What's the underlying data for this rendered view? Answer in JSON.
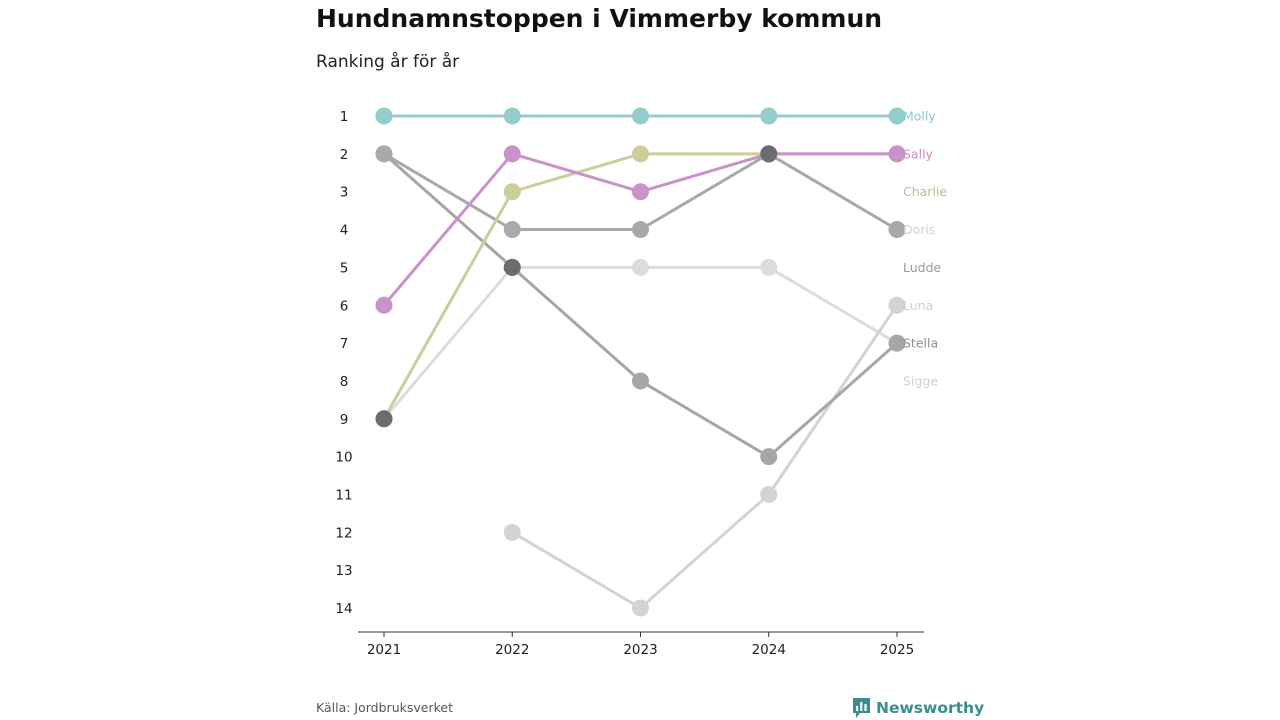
{
  "header": {
    "title": "Hundnamnstoppen i Vimmerby kommun",
    "subtitle": "Ranking år för år"
  },
  "footer": {
    "source": "Källa: Jordbruksverket",
    "brand": "Newsworthy"
  },
  "chart_data": {
    "type": "line",
    "title": "Hundnamnstoppen i Vimmerby kommun",
    "subtitle": "Ranking år för år",
    "xlabel": "",
    "ylabel": "",
    "x": [
      "2021",
      "2022",
      "2023",
      "2024",
      "2025"
    ],
    "y_ticks": [
      "1",
      "2",
      "3",
      "4",
      "5",
      "6",
      "7",
      "8",
      "9",
      "10",
      "11",
      "12",
      "13",
      "14"
    ],
    "ylim": [
      1,
      14
    ],
    "y_inverted": true,
    "grid": false,
    "series": [
      {
        "name": "Sigge",
        "color": "#dcdcdc",
        "label_rank": 8,
        "values": [
          9,
          5,
          5,
          5,
          7
        ]
      },
      {
        "name": "Luna",
        "color": "#d3d3d3",
        "label_rank": 6,
        "values": [
          null,
          12,
          14,
          11,
          6
        ]
      },
      {
        "name": "Doris",
        "color": "#d3d3d3",
        "label_rank": 4,
        "values": [
          null,
          null,
          null,
          null,
          4
        ]
      },
      {
        "name": "Ludde",
        "color": "#a6a6a6",
        "label_rank": 5,
        "values": [
          2,
          5,
          8,
          10,
          7
        ]
      },
      {
        "name": "Stella",
        "color": "#a9a9a9",
        "label_rank": 7,
        "values": [
          2,
          4,
          4,
          2,
          4
        ]
      },
      {
        "name": "Charlie",
        "color": "#cdcd9a",
        "label_rank": 3,
        "values": [
          9,
          3,
          2,
          2,
          2
        ]
      },
      {
        "name": "Sally",
        "color": "#c993c9",
        "label_rank": 2,
        "values": [
          6,
          2,
          3,
          2,
          2
        ]
      },
      {
        "name": "Molly",
        "color": "#95cccc",
        "label_rank": 1,
        "values": [
          1,
          1,
          1,
          1,
          1
        ]
      }
    ],
    "overlap_markers": [
      {
        "x": "2021",
        "rank": 9,
        "color": "#6b6b70"
      },
      {
        "x": "2022",
        "rank": 5,
        "color": "#6b6b70"
      },
      {
        "x": "2024",
        "rank": 2,
        "color": "#6b6b70"
      }
    ],
    "label_colors": {
      "Molly": "#8ec9c9",
      "Sally": "#c68ec6",
      "Charlie": "#bcbf8a",
      "Doris": "#d0d0d0",
      "Ludde": "#999999",
      "Luna": "#d0d0d0",
      "Stella": "#8e8e8e",
      "Sigge": "#d0d0d0"
    }
  }
}
